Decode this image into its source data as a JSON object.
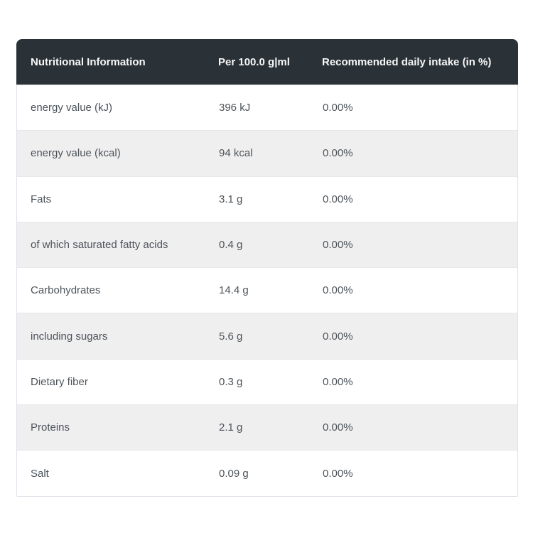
{
  "table": {
    "headers": {
      "name": "Nutritional Information",
      "amount": "Per 100.0 g|ml",
      "rdi": "Recommended daily intake (in %)"
    },
    "rows": [
      {
        "name": "energy value (kJ)",
        "amount": "396 kJ",
        "rdi": "0.00%"
      },
      {
        "name": "energy value (kcal)",
        "amount": "94 kcal",
        "rdi": "0.00%"
      },
      {
        "name": "Fats",
        "amount": "3.1 g",
        "rdi": "0.00%"
      },
      {
        "name": "of which saturated fatty acids",
        "amount": "0.4 g",
        "rdi": "0.00%"
      },
      {
        "name": "Carbohydrates",
        "amount": "14.4 g",
        "rdi": "0.00%"
      },
      {
        "name": "including sugars",
        "amount": "5.6 g",
        "rdi": "0.00%"
      },
      {
        "name": "Dietary fiber",
        "amount": "0.3 g",
        "rdi": "0.00%"
      },
      {
        "name": "Proteins",
        "amount": "2.1 g",
        "rdi": "0.00%"
      },
      {
        "name": "Salt",
        "amount": "0.09 g",
        "rdi": "0.00%"
      }
    ],
    "colors": {
      "header_bg": "#2b3237",
      "header_text": "#f7f7f7",
      "row_bg": "#ffffff",
      "row_alt_bg": "#f0eff0",
      "border": "#dde2e7",
      "body_text": "#4d545a"
    }
  }
}
